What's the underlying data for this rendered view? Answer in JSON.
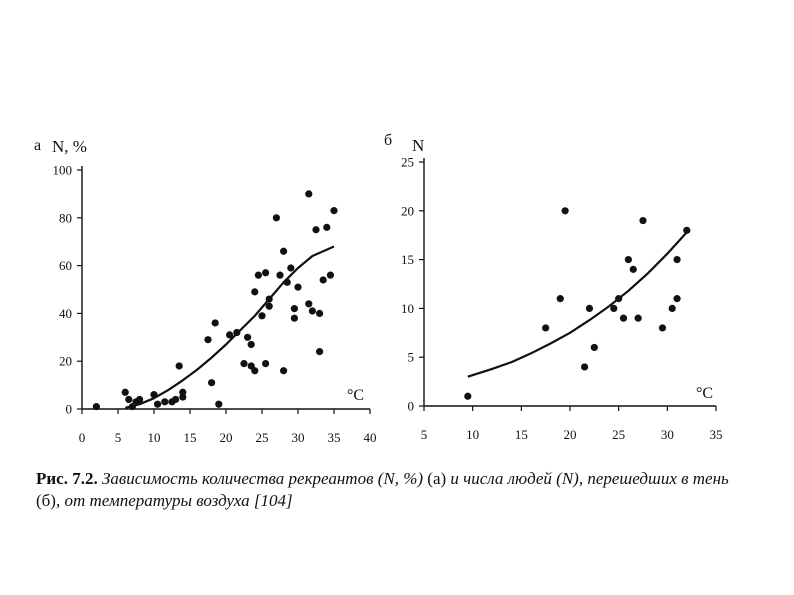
{
  "chart_data": [
    {
      "type": "scatter",
      "panel_letter": "а",
      "ylabel": "N, %",
      "xlabel": "°C",
      "xlim": [
        0,
        40
      ],
      "ylim": [
        0,
        100
      ],
      "x_ticks": [
        0,
        5,
        10,
        15,
        20,
        25,
        30,
        35,
        40
      ],
      "x_tick_labels": [
        "0",
        "5",
        "10",
        "15",
        "20",
        "25",
        "30",
        "35",
        "40"
      ],
      "y_ticks": [
        0,
        20,
        40,
        60,
        80,
        100
      ],
      "y_tick_labels": [
        "0",
        "20",
        "40",
        "60",
        "80",
        "100"
      ],
      "series": [
        {
          "name": "observations",
          "points": [
            [
              2,
              1
            ],
            [
              6,
              7
            ],
            [
              6.5,
              4
            ],
            [
              7,
              1
            ],
            [
              7.5,
              3
            ],
            [
              8,
              4
            ],
            [
              10,
              6
            ],
            [
              10.5,
              2
            ],
            [
              11.5,
              3
            ],
            [
              12.5,
              3
            ],
            [
              13,
              4
            ],
            [
              13.5,
              18
            ],
            [
              14,
              5
            ],
            [
              14,
              7
            ],
            [
              17.5,
              29
            ],
            [
              18,
              11
            ],
            [
              18.5,
              36
            ],
            [
              19,
              2
            ],
            [
              20.5,
              31
            ],
            [
              21.5,
              32
            ],
            [
              22.5,
              19
            ],
            [
              23,
              30
            ],
            [
              23.5,
              27
            ],
            [
              23.5,
              18
            ],
            [
              24,
              16
            ],
            [
              24,
              49
            ],
            [
              24.5,
              56
            ],
            [
              25,
              39
            ],
            [
              25.5,
              57
            ],
            [
              25.5,
              19
            ],
            [
              26,
              46
            ],
            [
              26,
              43
            ],
            [
              27,
              80
            ],
            [
              27.5,
              56
            ],
            [
              28,
              16
            ],
            [
              28,
              66
            ],
            [
              28.5,
              53
            ],
            [
              29,
              59
            ],
            [
              29.5,
              38
            ],
            [
              29.5,
              42
            ],
            [
              30,
              51
            ],
            [
              31.5,
              44
            ],
            [
              31.5,
              90
            ],
            [
              32,
              41
            ],
            [
              32.5,
              75
            ],
            [
              33,
              40
            ],
            [
              33,
              24
            ],
            [
              33.5,
              54
            ],
            [
              34,
              76
            ],
            [
              34.5,
              56
            ],
            [
              35,
              83
            ]
          ]
        },
        {
          "name": "trend",
          "curve": [
            [
              6,
              0.5
            ],
            [
              8,
              2
            ],
            [
              10,
              4.5
            ],
            [
              12,
              8
            ],
            [
              14,
              12
            ],
            [
              16,
              16.5
            ],
            [
              18,
              21.5
            ],
            [
              20,
              27
            ],
            [
              22,
              33
            ],
            [
              24,
              39
            ],
            [
              26,
              46
            ],
            [
              28,
              53
            ],
            [
              30,
              59
            ],
            [
              32,
              64
            ],
            [
              35,
              68
            ]
          ]
        }
      ]
    },
    {
      "type": "scatter",
      "panel_letter": "б",
      "ylabel": "N",
      "xlabel": "°C",
      "xlim": [
        5,
        35
      ],
      "ylim": [
        0,
        25
      ],
      "x_ticks": [
        5,
        10,
        15,
        20,
        25,
        30,
        35
      ],
      "x_tick_labels": [
        "5",
        "10",
        "15",
        "20",
        "25",
        "30",
        "35"
      ],
      "y_ticks": [
        0,
        5,
        10,
        15,
        20,
        25
      ],
      "y_tick_labels": [
        "0",
        "5",
        "10",
        "15",
        "20",
        "25"
      ],
      "series": [
        {
          "name": "observations",
          "points": [
            [
              9.5,
              1
            ],
            [
              17.5,
              8
            ],
            [
              19,
              11
            ],
            [
              19.5,
              20
            ],
            [
              21.5,
              4
            ],
            [
              22,
              10
            ],
            [
              22.5,
              6
            ],
            [
              24.5,
              10
            ],
            [
              25,
              11
            ],
            [
              25.5,
              9
            ],
            [
              26,
              15
            ],
            [
              26.5,
              14
            ],
            [
              27,
              9
            ],
            [
              27.5,
              19
            ],
            [
              29.5,
              8
            ],
            [
              30.5,
              10
            ],
            [
              31,
              11
            ],
            [
              31,
              15
            ],
            [
              32,
              18
            ]
          ]
        },
        {
          "name": "trend",
          "curve": [
            [
              9.5,
              3
            ],
            [
              12,
              3.8
            ],
            [
              14,
              4.5
            ],
            [
              16,
              5.4
            ],
            [
              18,
              6.4
            ],
            [
              20,
              7.5
            ],
            [
              22,
              8.8
            ],
            [
              24,
              10.2
            ],
            [
              26,
              11.8
            ],
            [
              28,
              13.6
            ],
            [
              30,
              15.6
            ],
            [
              32,
              17.8
            ]
          ]
        }
      ]
    }
  ],
  "caption": {
    "label": "Рис. 7.2.",
    "part1": " Зависимость количества рекреантов (N, %) ",
    "mark_a": "(а)",
    "part2": " и числа людей (N), перешедших в тень ",
    "mark_b": "(б)",
    "part3": ", от температуры воздуха [104]"
  },
  "colors": {
    "ink": "#111111",
    "background": "#ffffff"
  }
}
